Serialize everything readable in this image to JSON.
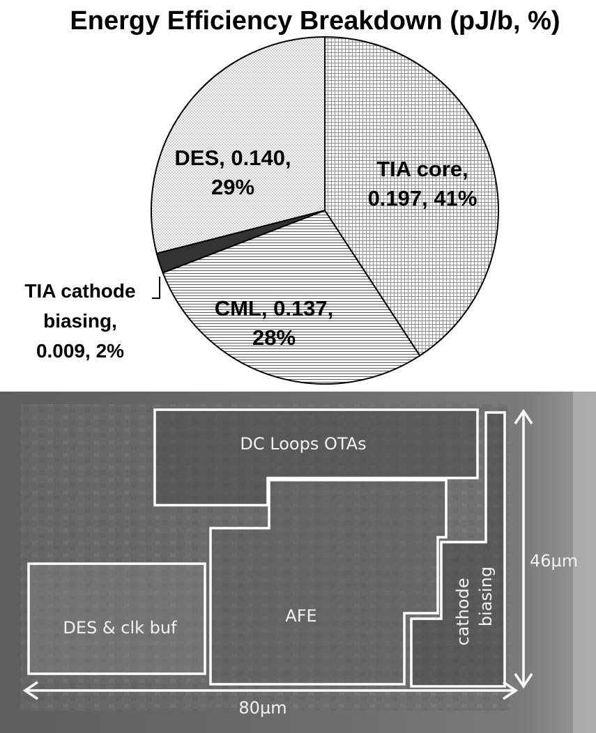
{
  "chart_data": {
    "type": "pie",
    "title": "Energy Efficiency Breakdown (pJ/b, %)",
    "unit": "pJ/b",
    "slices": [
      {
        "label": "TIA core",
        "value": 0.197,
        "percent": 41,
        "text": [
          "TIA core,",
          "0.197, 41%"
        ],
        "fill": "grid"
      },
      {
        "label": "CML",
        "value": 0.137,
        "percent": 28,
        "text": [
          "CML, 0.137,",
          "28%"
        ],
        "fill": "hlines"
      },
      {
        "label": "TIA cathode biasing",
        "value": 0.009,
        "percent": 2,
        "text": [
          "TIA cathode",
          "biasing,",
          "0.009, 2%"
        ],
        "fill": "solid-dark"
      },
      {
        "label": "DES",
        "value": 0.14,
        "percent": 29,
        "text": [
          "DES, 0.140,",
          "29%"
        ],
        "fill": "dots"
      }
    ]
  },
  "die_photo": {
    "blocks": [
      {
        "name": "dc-loops-otas-block",
        "label": "DC Loops OTAs"
      },
      {
        "name": "afe-block",
        "label": "AFE"
      },
      {
        "name": "cathode-biasing-block",
        "label": [
          "cathode",
          "biasing"
        ]
      },
      {
        "name": "des-clk-buf-block",
        "label": "DES & clk buf"
      }
    ],
    "width_dimension": "80µm",
    "height_dimension": "46µm"
  }
}
